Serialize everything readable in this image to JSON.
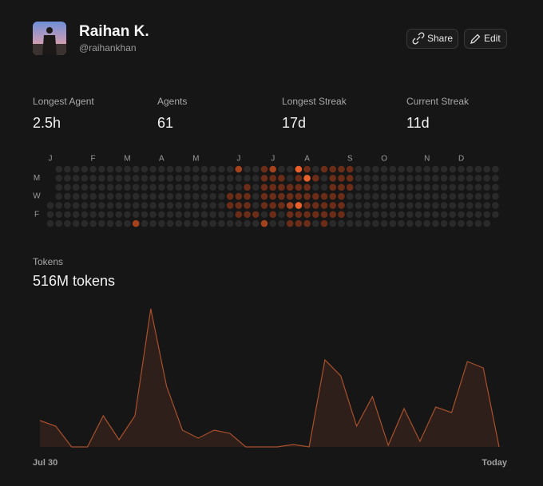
{
  "profile": {
    "name": "Raihan K.",
    "handle": "@raihankhan"
  },
  "buttons": {
    "share": "Share",
    "edit": "Edit"
  },
  "stats": [
    {
      "label": "Longest Agent",
      "value": "2.5h"
    },
    {
      "label": "Agents",
      "value": "61"
    },
    {
      "label": "Longest Streak",
      "value": "17d"
    },
    {
      "label": "Current Streak",
      "value": "11d"
    }
  ],
  "heatmap": {
    "months": [
      {
        "label": "J",
        "week": 0
      },
      {
        "label": "F",
        "week": 5
      },
      {
        "label": "M",
        "week": 9
      },
      {
        "label": "A",
        "week": 13
      },
      {
        "label": "M",
        "week": 17
      },
      {
        "label": "J",
        "week": 22
      },
      {
        "label": "J",
        "week": 26
      },
      {
        "label": "A",
        "week": 30
      },
      {
        "label": "S",
        "week": 35
      },
      {
        "label": "O",
        "week": 39
      },
      {
        "label": "N",
        "week": 44
      },
      {
        "label": "D",
        "week": 48
      }
    ],
    "days": [
      null,
      "M",
      null,
      "W",
      null,
      "F",
      null
    ],
    "colors": [
      "#2a2a2a",
      "#6b2d17",
      "#a3421d",
      "#e8612c"
    ],
    "weeks": [
      [
        null,
        null,
        null,
        null,
        0,
        0,
        0
      ],
      [
        0,
        0,
        0,
        0,
        0,
        0,
        0
      ],
      [
        0,
        0,
        0,
        0,
        0,
        0,
        0
      ],
      [
        0,
        0,
        0,
        0,
        0,
        0,
        0
      ],
      [
        0,
        0,
        0,
        0,
        0,
        0,
        0
      ],
      [
        0,
        0,
        0,
        0,
        0,
        0,
        0
      ],
      [
        0,
        0,
        0,
        0,
        0,
        0,
        0
      ],
      [
        0,
        0,
        0,
        0,
        0,
        0,
        0
      ],
      [
        0,
        0,
        0,
        0,
        0,
        0,
        0
      ],
      [
        0,
        0,
        0,
        0,
        0,
        0,
        0
      ],
      [
        0,
        0,
        0,
        0,
        0,
        0,
        2
      ],
      [
        0,
        0,
        0,
        0,
        0,
        0,
        0
      ],
      [
        0,
        0,
        0,
        0,
        0,
        0,
        0
      ],
      [
        0,
        0,
        0,
        0,
        0,
        0,
        0
      ],
      [
        0,
        0,
        0,
        0,
        0,
        0,
        0
      ],
      [
        0,
        0,
        0,
        0,
        0,
        0,
        0
      ],
      [
        0,
        0,
        0,
        0,
        0,
        0,
        0
      ],
      [
        0,
        0,
        0,
        0,
        0,
        0,
        0
      ],
      [
        0,
        0,
        0,
        0,
        0,
        0,
        0
      ],
      [
        0,
        0,
        0,
        0,
        0,
        0,
        0
      ],
      [
        0,
        0,
        0,
        0,
        0,
        0,
        0
      ],
      [
        0,
        0,
        0,
        1,
        1,
        0,
        0
      ],
      [
        2,
        0,
        0,
        1,
        1,
        1,
        0
      ],
      [
        0,
        0,
        1,
        1,
        1,
        1,
        0
      ],
      [
        0,
        0,
        0,
        0,
        0,
        1,
        0
      ],
      [
        1,
        1,
        1,
        1,
        1,
        0,
        2
      ],
      [
        2,
        1,
        1,
        1,
        1,
        1,
        0
      ],
      [
        0,
        1,
        1,
        1,
        1,
        0,
        0
      ],
      [
        0,
        0,
        1,
        1,
        2,
        1,
        1
      ],
      [
        3,
        1,
        1,
        1,
        3,
        1,
        1
      ],
      [
        1,
        3,
        1,
        1,
        1,
        1,
        1
      ],
      [
        0,
        1,
        0,
        1,
        1,
        1,
        0
      ],
      [
        1,
        0,
        0,
        1,
        1,
        1,
        1
      ],
      [
        1,
        1,
        1,
        1,
        1,
        1,
        0
      ],
      [
        1,
        1,
        1,
        1,
        1,
        1,
        0
      ],
      [
        1,
        1,
        1,
        0,
        0,
        0,
        0
      ],
      [
        0,
        0,
        0,
        0,
        0,
        0,
        0
      ],
      [
        0,
        0,
        0,
        0,
        0,
        0,
        0
      ],
      [
        0,
        0,
        0,
        0,
        0,
        0,
        0
      ],
      [
        0,
        0,
        0,
        0,
        0,
        0,
        0
      ],
      [
        0,
        0,
        0,
        0,
        0,
        0,
        0
      ],
      [
        0,
        0,
        0,
        0,
        0,
        0,
        0
      ],
      [
        0,
        0,
        0,
        0,
        0,
        0,
        0
      ],
      [
        0,
        0,
        0,
        0,
        0,
        0,
        0
      ],
      [
        0,
        0,
        0,
        0,
        0,
        0,
        0
      ],
      [
        0,
        0,
        0,
        0,
        0,
        0,
        0
      ],
      [
        0,
        0,
        0,
        0,
        0,
        0,
        0
      ],
      [
        0,
        0,
        0,
        0,
        0,
        0,
        0
      ],
      [
        0,
        0,
        0,
        0,
        0,
        0,
        0
      ],
      [
        0,
        0,
        0,
        0,
        0,
        0,
        0
      ],
      [
        0,
        0,
        0,
        0,
        0,
        0,
        0
      ],
      [
        0,
        0,
        0,
        0,
        0,
        0,
        0
      ],
      [
        0,
        0,
        0,
        0,
        0,
        0,
        null
      ]
    ]
  },
  "chart_data": {
    "type": "area",
    "title": "Tokens",
    "subtitle": "516M tokens",
    "categories": [
      "Jul 30",
      null,
      null,
      null,
      null,
      null,
      null,
      null,
      null,
      null,
      null,
      null,
      null,
      null,
      null,
      null,
      null,
      null,
      null,
      null,
      null,
      null,
      null,
      null,
      null,
      null,
      null,
      null,
      null,
      "Today"
    ],
    "values": [
      33,
      26,
      0,
      0,
      39,
      9,
      39,
      173,
      76,
      21,
      11,
      21,
      17,
      0,
      0,
      0,
      3,
      0,
      109,
      89,
      26,
      63,
      2,
      48,
      7,
      50,
      43,
      107,
      99,
      0
    ],
    "ylim": [
      0,
      180
    ],
    "color": "#a8502c",
    "fill": "#2e1f1a"
  }
}
